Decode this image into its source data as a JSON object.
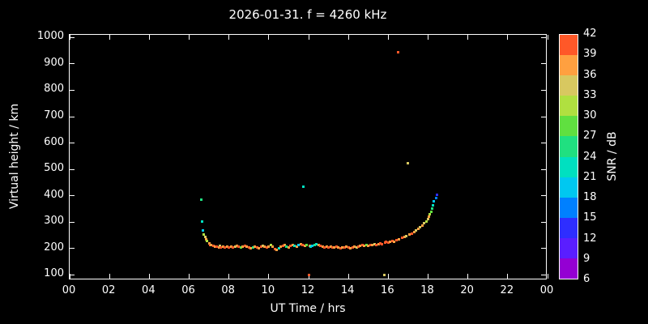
{
  "figure": {
    "background": "#000000",
    "text_color": "#ffffff"
  },
  "chart_data": {
    "type": "scatter",
    "title": "2026-01-31. f = 4260 kHz",
    "xlabel": "UT Time / hrs",
    "ylabel": "Virtual height / km",
    "colorbar_label": "SNR / dB",
    "xlim": [
      0,
      24
    ],
    "ylim": [
      80,
      1010
    ],
    "grid": false,
    "legend_position": "colorbar-right",
    "x_ticks": {
      "values": [
        0,
        2,
        4,
        6,
        8,
        10,
        12,
        14,
        16,
        18,
        20,
        22,
        24
      ],
      "labels": [
        "00",
        "02",
        "04",
        "06",
        "08",
        "10",
        "12",
        "14",
        "16",
        "18",
        "20",
        "22",
        "00"
      ]
    },
    "y_ticks": {
      "values": [
        100,
        200,
        300,
        400,
        500,
        600,
        700,
        800,
        900,
        1000
      ],
      "labels": [
        "100",
        "200",
        "300",
        "400",
        "500",
        "600",
        "700",
        "800",
        "900",
        "1000"
      ]
    },
    "colorbar": {
      "min": 6,
      "max": 42,
      "tick_step": 3,
      "tick_labels": [
        "6",
        "9",
        "12",
        "15",
        "18",
        "21",
        "24",
        "27",
        "30",
        "33",
        "36",
        "39",
        "42"
      ],
      "band_colors": [
        "#9400d3",
        "#5a1eff",
        "#2e2eff",
        "#0080ff",
        "#00c8f0",
        "#00e0c0",
        "#20e080",
        "#60e040",
        "#b0e040",
        "#d8c860",
        "#ffa040",
        "#ff5828",
        "#ff0a00"
      ]
    },
    "points_format": [
      "time_hrs",
      "virtual_height_km",
      "snr_db"
    ],
    "points": [
      [
        6.6,
        385,
        24
      ],
      [
        6.65,
        302,
        21
      ],
      [
        6.7,
        268,
        18
      ],
      [
        6.75,
        252,
        30
      ],
      [
        6.8,
        243,
        33
      ],
      [
        6.85,
        234,
        36
      ],
      [
        6.9,
        228,
        30
      ],
      [
        7.0,
        221,
        36
      ],
      [
        7.05,
        215,
        39
      ],
      [
        7.1,
        212,
        36
      ],
      [
        7.2,
        210,
        39
      ],
      [
        7.3,
        208,
        36
      ],
      [
        7.4,
        206,
        39
      ],
      [
        7.5,
        205,
        36
      ],
      [
        7.55,
        210,
        33
      ],
      [
        7.6,
        204,
        39
      ],
      [
        7.7,
        206,
        36
      ],
      [
        7.8,
        203,
        39
      ],
      [
        7.9,
        207,
        36
      ],
      [
        8.0,
        205,
        42
      ],
      [
        8.1,
        208,
        36
      ],
      [
        8.2,
        204,
        39
      ],
      [
        8.3,
        206,
        33
      ],
      [
        8.4,
        209,
        36
      ],
      [
        8.5,
        206,
        39
      ],
      [
        8.6,
        203,
        27
      ],
      [
        8.7,
        206,
        36
      ],
      [
        8.8,
        210,
        39
      ],
      [
        8.9,
        206,
        36
      ],
      [
        9.0,
        204,
        39
      ],
      [
        9.1,
        201,
        36
      ],
      [
        9.2,
        205,
        24
      ],
      [
        9.3,
        208,
        36
      ],
      [
        9.4,
        204,
        39
      ],
      [
        9.5,
        201,
        36
      ],
      [
        9.6,
        206,
        39
      ],
      [
        9.7,
        210,
        33
      ],
      [
        9.8,
        206,
        36
      ],
      [
        9.9,
        203,
        39
      ],
      [
        10.0,
        207,
        36
      ],
      [
        10.1,
        212,
        30
      ],
      [
        10.2,
        206,
        36
      ],
      [
        10.3,
        198,
        39
      ],
      [
        10.4,
        195,
        36
      ],
      [
        10.5,
        200,
        21
      ],
      [
        10.6,
        206,
        36
      ],
      [
        10.7,
        210,
        39
      ],
      [
        10.8,
        213,
        36
      ],
      [
        10.9,
        208,
        24
      ],
      [
        11.0,
        205,
        36
      ],
      [
        11.1,
        210,
        39
      ],
      [
        11.2,
        214,
        36
      ],
      [
        11.3,
        210,
        21
      ],
      [
        11.4,
        206,
        36
      ],
      [
        11.5,
        212,
        18
      ],
      [
        11.6,
        216,
        36
      ],
      [
        11.7,
        212,
        39
      ],
      [
        11.75,
        435,
        21
      ],
      [
        11.8,
        210,
        36
      ],
      [
        11.9,
        214,
        27
      ],
      [
        12.0,
        100,
        39
      ],
      [
        12.05,
        210,
        36
      ],
      [
        12.1,
        206,
        21
      ],
      [
        12.2,
        210,
        18
      ],
      [
        12.3,
        214,
        24
      ],
      [
        12.4,
        218,
        21
      ],
      [
        12.5,
        214,
        36
      ],
      [
        12.6,
        210,
        39
      ],
      [
        12.7,
        206,
        36
      ],
      [
        12.8,
        203,
        39
      ],
      [
        12.9,
        206,
        36
      ],
      [
        13.0,
        204,
        42
      ],
      [
        13.1,
        206,
        36
      ],
      [
        13.2,
        203,
        39
      ],
      [
        13.3,
        205,
        36
      ],
      [
        13.4,
        207,
        39
      ],
      [
        13.5,
        204,
        36
      ],
      [
        13.6,
        202,
        39
      ],
      [
        13.7,
        205,
        36
      ],
      [
        13.8,
        203,
        39
      ],
      [
        13.9,
        206,
        36
      ],
      [
        14.0,
        204,
        39
      ],
      [
        14.1,
        202,
        36
      ],
      [
        14.2,
        205,
        39
      ],
      [
        14.3,
        207,
        36
      ],
      [
        14.4,
        204,
        33
      ],
      [
        14.5,
        206,
        39
      ],
      [
        14.6,
        210,
        36
      ],
      [
        14.7,
        213,
        39
      ],
      [
        14.8,
        210,
        36
      ],
      [
        14.9,
        214,
        27
      ],
      [
        15.0,
        211,
        36
      ],
      [
        15.1,
        215,
        39
      ],
      [
        15.2,
        212,
        36
      ],
      [
        15.3,
        216,
        33
      ],
      [
        15.4,
        213,
        39
      ],
      [
        15.5,
        217,
        36
      ],
      [
        15.6,
        220,
        39
      ],
      [
        15.7,
        218,
        42
      ],
      [
        15.8,
        100,
        33
      ],
      [
        15.85,
        222,
        39
      ],
      [
        15.9,
        225,
        42
      ],
      [
        16.0,
        222,
        39
      ],
      [
        16.1,
        226,
        36
      ],
      [
        16.2,
        230,
        39
      ],
      [
        16.3,
        227,
        36
      ],
      [
        16.4,
        232,
        39
      ],
      [
        16.5,
        945,
        39
      ],
      [
        16.55,
        236,
        36
      ],
      [
        16.7,
        240,
        39
      ],
      [
        16.8,
        244,
        36
      ],
      [
        16.9,
        248,
        33
      ],
      [
        17.0,
        525,
        33
      ],
      [
        17.05,
        252,
        36
      ],
      [
        17.2,
        258,
        39
      ],
      [
        17.3,
        263,
        36
      ],
      [
        17.4,
        268,
        33
      ],
      [
        17.5,
        274,
        36
      ],
      [
        17.6,
        280,
        33
      ],
      [
        17.7,
        287,
        36
      ],
      [
        17.8,
        295,
        33
      ],
      [
        17.9,
        304,
        30
      ],
      [
        18.0,
        312,
        33
      ],
      [
        18.05,
        320,
        36
      ],
      [
        18.1,
        330,
        30
      ],
      [
        18.15,
        340,
        27
      ],
      [
        18.2,
        352,
        24
      ],
      [
        18.25,
        365,
        21
      ],
      [
        18.3,
        378,
        18
      ],
      [
        18.4,
        392,
        15
      ],
      [
        18.45,
        405,
        12
      ]
    ]
  }
}
